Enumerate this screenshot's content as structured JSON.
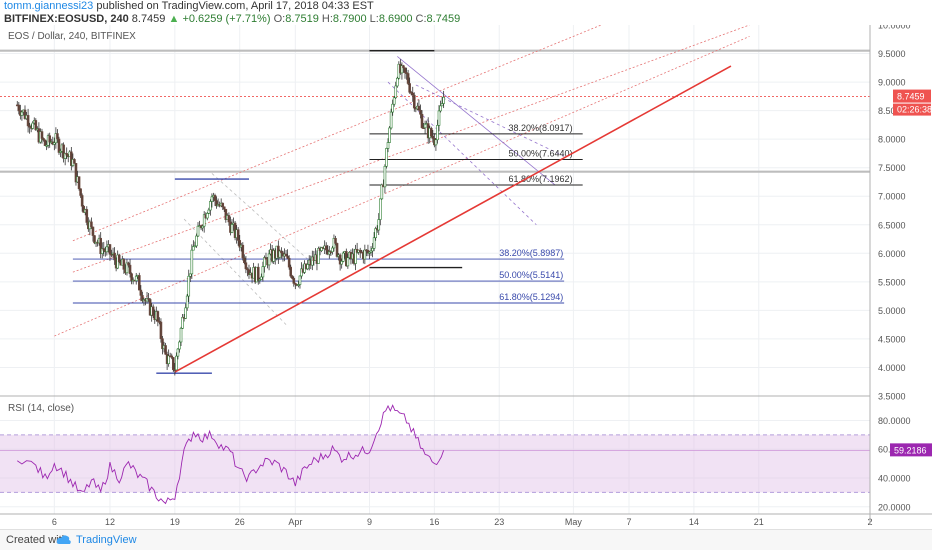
{
  "header": {
    "author": "tomm.giannessi23",
    "published_text": "published on TradingView.com, April 17, 2018 04:33 EST",
    "symbol": "BITFINEX:EOSUSD, 240",
    "last": "8.7459",
    "change": "+0.6259 (+7.71%)",
    "open_label": "O:",
    "open": "8.7519",
    "high_label": "H:",
    "high": "8.7900",
    "low_label": "L:",
    "low": "8.6900",
    "close_label": "C:",
    "close": "8.7459"
  },
  "pane_title": "EOS / Dollar, 240, BITFINEX",
  "rsi_title": "RSI (14, close)",
  "price_badge": {
    "value": "8.7459",
    "countdown": "02:26:38",
    "color": "#ef5350"
  },
  "rsi_badge": {
    "value": "59.2186",
    "color": "#9c27b0"
  },
  "footer": {
    "created_with": "Created with",
    "brand": "TradingView"
  },
  "chart_data": [
    {
      "type": "candlestick",
      "title": "EOS / Dollar, 240, BITFINEX",
      "x_tick_labels": [
        "6",
        "12",
        "19",
        "26",
        "Apr",
        "9",
        "16",
        "23",
        "May",
        "7",
        "14",
        "21",
        "2"
      ],
      "y_ticks": [
        "10.0000",
        "9.5000",
        "9.0000",
        "8.5000",
        "8.0000",
        "7.5000",
        "7.0000",
        "6.5000",
        "6.0000",
        "5.5000",
        "5.0000",
        "4.5000",
        "4.0000",
        "3.5000"
      ],
      "ylim": [
        3.5,
        10.0
      ],
      "x_start": "2018-03-01",
      "x_end": "2018-06-02",
      "close_path": [
        [
          "2018-03-02",
          8.6
        ],
        [
          "2018-03-03",
          8.4
        ],
        [
          "2018-03-05",
          7.9
        ],
        [
          "2018-03-06",
          8.0
        ],
        [
          "2018-03-08",
          7.6
        ],
        [
          "2018-03-09",
          6.9
        ],
        [
          "2018-03-10",
          6.4
        ],
        [
          "2018-03-11",
          6.1
        ],
        [
          "2018-03-12",
          6.0
        ],
        [
          "2018-03-13",
          5.8
        ],
        [
          "2018-03-14",
          5.7
        ],
        [
          "2018-03-15",
          5.5
        ],
        [
          "2018-03-16",
          5.1
        ],
        [
          "2018-03-17",
          4.9
        ],
        [
          "2018-03-18",
          4.2
        ],
        [
          "2018-03-19",
          4.0
        ],
        [
          "2018-03-20",
          5.0
        ],
        [
          "2018-03-21",
          6.1
        ],
        [
          "2018-03-22",
          6.6
        ],
        [
          "2018-03-23",
          7.0
        ],
        [
          "2018-03-24",
          6.8
        ],
        [
          "2018-03-25",
          6.5
        ],
        [
          "2018-03-26",
          6.2
        ],
        [
          "2018-03-27",
          5.7
        ],
        [
          "2018-03-28",
          5.6
        ],
        [
          "2018-03-29",
          5.9
        ],
        [
          "2018-03-30",
          6.0
        ],
        [
          "2018-03-31",
          5.9
        ],
        [
          "2018-04-01",
          5.5
        ],
        [
          "2018-04-02",
          5.7
        ],
        [
          "2018-04-03",
          5.9
        ],
        [
          "2018-04-04",
          6.0
        ],
        [
          "2018-04-05",
          6.2
        ],
        [
          "2018-04-06",
          5.9
        ],
        [
          "2018-04-07",
          5.9
        ],
        [
          "2018-04-08",
          6.0
        ],
        [
          "2018-04-09",
          6.0
        ],
        [
          "2018-04-10",
          6.6
        ],
        [
          "2018-04-11",
          8.0
        ],
        [
          "2018-04-12",
          9.2
        ],
        [
          "2018-04-13",
          9.1
        ],
        [
          "2018-04-14",
          8.6
        ],
        [
          "2018-04-15",
          8.2
        ],
        [
          "2018-04-16",
          8.0
        ],
        [
          "2018-04-17",
          8.7459
        ]
      ],
      "support_trendline": [
        [
          "2018-03-19",
          3.92
        ],
        [
          "2018-05-18",
          9.28
        ]
      ],
      "channel_lines": {
        "upper": [
          [
            "2018-03-08",
            6.22
          ],
          [
            "2018-05-04",
            10.0
          ]
        ],
        "middle": [
          [
            "2018-03-08",
            5.67
          ],
          [
            "2018-05-20",
            10.0
          ]
        ],
        "lower": [
          [
            "2018-03-06",
            4.55
          ],
          [
            "2018-05-20",
            9.8
          ]
        ]
      },
      "horizontal_levels": [
        9.55,
        7.43
      ],
      "fibonacci_upper": [
        {
          "label": "38.20%(8.0917)",
          "value": 8.0917
        },
        {
          "label": "50.00%(7.6440)",
          "value": 7.644
        },
        {
          "label": "61.80%(7.1962)",
          "value": 7.1962
        }
      ],
      "fibonacci_lower": [
        {
          "label": "38.20%(5.8987)",
          "value": 5.8987
        },
        {
          "label": "50.00%(5.5141)",
          "value": 5.5141
        },
        {
          "label": "61.80%(5.1294)",
          "value": 5.1294
        }
      ]
    },
    {
      "type": "line",
      "title": "RSI (14, close)",
      "y_ticks": [
        "80.0000",
        "60.0000",
        "40.0000",
        "20.0000"
      ],
      "ylim": [
        15,
        97
      ],
      "band": [
        30,
        70
      ],
      "last_value": 59.2186,
      "values": [
        [
          "2018-03-02",
          55
        ],
        [
          "2018-03-04",
          48
        ],
        [
          "2018-03-05",
          40
        ],
        [
          "2018-03-06",
          50
        ],
        [
          "2018-03-07",
          44
        ],
        [
          "2018-03-08",
          36
        ],
        [
          "2018-03-09",
          28
        ],
        [
          "2018-03-10",
          38
        ],
        [
          "2018-03-11",
          30
        ],
        [
          "2018-03-12",
          48
        ],
        [
          "2018-03-13",
          40
        ],
        [
          "2018-03-14",
          50
        ],
        [
          "2018-03-15",
          42
        ],
        [
          "2018-03-16",
          36
        ],
        [
          "2018-03-17",
          28
        ],
        [
          "2018-03-18",
          22
        ],
        [
          "2018-03-19",
          28
        ],
        [
          "2018-03-20",
          58
        ],
        [
          "2018-03-21",
          72
        ],
        [
          "2018-03-22",
          68
        ],
        [
          "2018-03-23",
          70
        ],
        [
          "2018-03-24",
          62
        ],
        [
          "2018-03-25",
          58
        ],
        [
          "2018-03-26",
          44
        ],
        [
          "2018-03-27",
          40
        ],
        [
          "2018-03-28",
          48
        ],
        [
          "2018-03-29",
          52
        ],
        [
          "2018-03-30",
          50
        ],
        [
          "2018-03-31",
          44
        ],
        [
          "2018-04-01",
          36
        ],
        [
          "2018-04-02",
          46
        ],
        [
          "2018-04-03",
          52
        ],
        [
          "2018-04-04",
          55
        ],
        [
          "2018-04-05",
          60
        ],
        [
          "2018-04-06",
          54
        ],
        [
          "2018-04-07",
          56
        ],
        [
          "2018-04-08",
          58
        ],
        [
          "2018-04-09",
          60
        ],
        [
          "2018-04-10",
          76
        ],
        [
          "2018-04-11",
          90
        ],
        [
          "2018-04-12",
          85
        ],
        [
          "2018-04-13",
          80
        ],
        [
          "2018-04-14",
          68
        ],
        [
          "2018-04-15",
          56
        ],
        [
          "2018-04-16",
          50
        ],
        [
          "2018-04-17",
          59.2
        ]
      ]
    }
  ]
}
